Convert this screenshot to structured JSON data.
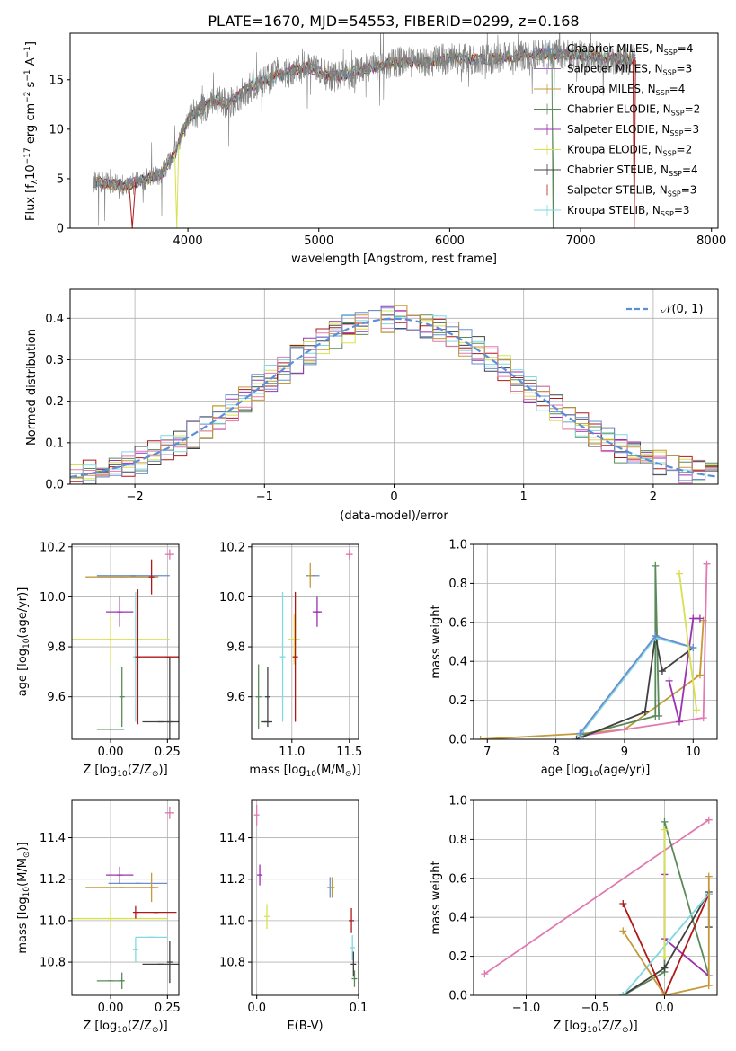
{
  "title": "PLATE=1670, MJD=54553, FIBERID=0299, z=0.168",
  "colors": {
    "spectrum": "#808080",
    "normal": "#5b8fd9",
    "grid": "#b0b0b0",
    "models": [
      "#6a8ed0",
      "#9a6bb8",
      "#c49a3a",
      "#5a8a5a",
      "#9b30b0",
      "#d8e050",
      "#404040",
      "#b01818",
      "#80d8e0"
    ]
  },
  "legend": [
    {
      "label": "Chabrier MILES, N",
      "sub": "SSP",
      "tail": "=4",
      "color": "#6a8ed0"
    },
    {
      "label": "Salpeter MILES, N",
      "sub": "SSP",
      "tail": "=3",
      "color": "#9a6bb8"
    },
    {
      "label": "Kroupa MILES, N",
      "sub": "SSP",
      "tail": "=4",
      "color": "#c49a3a"
    },
    {
      "label": "Chabrier ELODIE, N",
      "sub": "SSP",
      "tail": "=2",
      "color": "#5a8a5a"
    },
    {
      "label": "Salpeter ELODIE, N",
      "sub": "SSP",
      "tail": "=3",
      "color": "#9b30b0"
    },
    {
      "label": "Kroupa ELODIE, N",
      "sub": "SSP",
      "tail": "=2",
      "color": "#d8e050"
    },
    {
      "label": "Chabrier STELIB, N",
      "sub": "SSP",
      "tail": "=4",
      "color": "#404040"
    },
    {
      "label": "Salpeter STELIB, N",
      "sub": "SSP",
      "tail": "=3",
      "color": "#b01818"
    },
    {
      "label": "Kroupa STELIB, N",
      "sub": "SSP",
      "tail": "=3",
      "color": "#80d8e0"
    }
  ],
  "chart_data": [
    {
      "id": "spectrum",
      "type": "line",
      "xlabel": "wavelength [Angstrom, rest frame]",
      "ylabel_parts": [
        "Flux [f",
        "λ",
        "10",
        "−17",
        " erg cm",
        "−2",
        " s",
        "−1",
        " A",
        "−1",
        "]"
      ],
      "xlim": [
        3100,
        8050
      ],
      "ylim": [
        0,
        19.7
      ],
      "xticks": [
        4000,
        5000,
        6000,
        7000,
        8000
      ],
      "yticks": [
        0,
        5,
        10,
        15
      ],
      "x_range": [
        3280,
        7420
      ],
      "continuum": [
        [
          3280,
          4.7
        ],
        [
          3500,
          4.3
        ],
        [
          3650,
          4.8
        ],
        [
          3800,
          5.5
        ],
        [
          3900,
          7.5
        ],
        [
          4000,
          11
        ],
        [
          4100,
          12
        ],
        [
          4200,
          13
        ],
        [
          4300,
          12.5
        ],
        [
          4500,
          14.5
        ],
        [
          4700,
          15.5
        ],
        [
          4900,
          16.3
        ],
        [
          5100,
          15.3
        ],
        [
          5200,
          15.5
        ],
        [
          5400,
          16.2
        ],
        [
          5600,
          16.8
        ],
        [
          5800,
          16.7
        ],
        [
          6000,
          17.2
        ],
        [
          6200,
          17
        ],
        [
          6400,
          17.2
        ],
        [
          6600,
          17.5
        ],
        [
          6800,
          17.6
        ],
        [
          7000,
          17.5
        ],
        [
          7200,
          17.2
        ],
        [
          7420,
          17
        ]
      ],
      "dips": [
        [
          3550,
          3600,
          0
        ],
        [
          3900,
          3930,
          0
        ],
        [
          6780,
          6800,
          0
        ],
        [
          7400,
          7420,
          0
        ]
      ]
    },
    {
      "id": "residuals",
      "type": "histogram",
      "xlabel": "(data-model)/error",
      "ylabel": "Normed distribution",
      "xlim": [
        -2.5,
        2.5
      ],
      "ylim": [
        0,
        0.47
      ],
      "xticks": [
        -2,
        -1,
        0,
        1,
        2
      ],
      "yticks": [
        0.0,
        0.1,
        0.2,
        0.3,
        0.4
      ],
      "legend": "𝒩(0, 1)",
      "bin_width": 0.1
    },
    {
      "id": "age-vs-Z",
      "type": "scatter",
      "xlabel_parts": [
        "Z [log",
        "10",
        "(Z/Z",
        "⊙",
        ")]"
      ],
      "ylabel_parts": [
        "age  [log",
        "10",
        "(age/yr)]"
      ],
      "xlim": [
        -0.17,
        0.3
      ],
      "ylim": [
        9.43,
        10.21
      ],
      "xticks": [
        0.0,
        0.25
      ],
      "yticks": [
        9.6,
        9.8,
        10.0,
        10.2
      ],
      "points": [
        {
          "x": 0.1,
          "y": 10.085,
          "xerr": 0.16,
          "yerr": 0.0,
          "c": "#6a8ed0"
        },
        {
          "x": 0.05,
          "y": 10.08,
          "xerr": 0.16,
          "yerr": 0.0,
          "c": "#c49a3a"
        },
        {
          "x": 0.18,
          "y": 10.08,
          "xerr": 0.0,
          "yerr": 0.07,
          "c": "#b01818"
        },
        {
          "x": 0.04,
          "y": 9.94,
          "xerr": 0.06,
          "yerr": 0.06,
          "c": "#9b30b0"
        },
        {
          "x": 0.0,
          "y": 9.83,
          "xerr": 0.26,
          "yerr": 0.1,
          "c": "#d8e050"
        },
        {
          "x": 0.26,
          "y": 10.17,
          "xerr": 0.02,
          "yerr": 0.02,
          "c": "#e07ab0"
        },
        {
          "x": 0.11,
          "y": 9.76,
          "xerr": 0.0,
          "yerr": 0.26,
          "c": "#80d8e0"
        },
        {
          "x": 0.25,
          "y": 9.76,
          "xerr": 0.13,
          "yerr": 0.0,
          "c": "#b01818"
        },
        {
          "x": 0.12,
          "y": 9.76,
          "xerr": 0.0,
          "yerr": 0.27,
          "c": "#b01818"
        },
        {
          "x": 0.26,
          "y": 9.5,
          "xerr": 0.0,
          "yerr": 0.26,
          "c": "#404040"
        },
        {
          "x": 0.22,
          "y": 9.5,
          "xerr": 0.08,
          "yerr": 0.0,
          "c": "#404040"
        },
        {
          "x": 0.0,
          "y": 9.47,
          "xerr": 0.06,
          "yerr": 0.0,
          "c": "#5a8a5a"
        },
        {
          "x": 0.05,
          "y": 9.6,
          "xerr": 0.0,
          "yerr": 0.12,
          "c": "#5a8a5a"
        }
      ]
    },
    {
      "id": "age-vs-mass",
      "type": "scatter",
      "xlabel_parts": [
        "mass [log",
        "10",
        "(M/M",
        "⊙",
        ")]"
      ],
      "xlim": [
        10.65,
        11.58
      ],
      "ylim": [
        9.43,
        10.21
      ],
      "xticks": [
        11.0,
        11.5
      ],
      "yticks": [
        9.6,
        9.8,
        10.0,
        10.2
      ],
      "points": [
        {
          "x": 11.18,
          "y": 10.085,
          "xerr": 0.06,
          "yerr": 0.0,
          "c": "#6a8ed0"
        },
        {
          "x": 11.16,
          "y": 10.085,
          "xerr": 0.0,
          "yerr": 0.05,
          "c": "#c49a3a"
        },
        {
          "x": 11.22,
          "y": 9.94,
          "xerr": 0.04,
          "yerr": 0.06,
          "c": "#9b30b0"
        },
        {
          "x": 11.02,
          "y": 9.83,
          "xerr": 0.05,
          "yerr": 0.1,
          "c": "#d8e050"
        },
        {
          "x": 11.5,
          "y": 10.17,
          "xerr": 0.03,
          "yerr": 0.02,
          "c": "#e07ab0"
        },
        {
          "x": 10.92,
          "y": 9.76,
          "xerr": 0.0,
          "yerr": 0.26,
          "c": "#80d8e0"
        },
        {
          "x": 11.03,
          "y": 9.76,
          "xerr": 0.0,
          "yerr": 0.26,
          "c": "#b01818"
        },
        {
          "x": 10.78,
          "y": 9.5,
          "xerr": 0.05,
          "yerr": 0.0,
          "c": "#404040"
        },
        {
          "x": 10.79,
          "y": 9.6,
          "xerr": 0.0,
          "yerr": 0.12,
          "c": "#404040"
        },
        {
          "x": 10.71,
          "y": 9.6,
          "xerr": 0.0,
          "yerr": 0.13,
          "c": "#5a8a5a"
        }
      ]
    },
    {
      "id": "weight-vs-age",
      "type": "line",
      "xlabel_parts": [
        "age  [log",
        "10",
        "(age/yr)]"
      ],
      "ylabel": "mass weight",
      "xlim": [
        6.8,
        10.35
      ],
      "ylim": [
        0,
        1.0
      ],
      "xticks": [
        7,
        8,
        9,
        10
      ],
      "yticks": [
        0.0,
        0.2,
        0.4,
        0.6,
        0.8,
        1.0
      ],
      "series": [
        {
          "c": "#c49a3a",
          "pts": [
            [
              6.9,
              0.0
            ],
            [
              8.4,
              0.03
            ],
            [
              9.0,
              0.05
            ],
            [
              10.1,
              0.33
            ],
            [
              10.15,
              0.61
            ]
          ]
        },
        {
          "c": "#e07ab0",
          "pts": [
            [
              8.4,
              0.02
            ],
            [
              9.0,
              0.05
            ],
            [
              10.15,
              0.11
            ],
            [
              10.2,
              0.9
            ]
          ]
        },
        {
          "c": "#9b30b0",
          "pts": [
            [
              9.65,
              0.3
            ],
            [
              9.8,
              0.09
            ],
            [
              10.0,
              0.62
            ],
            [
              10.1,
              0.62
            ]
          ]
        },
        {
          "c": "#5a8a5a",
          "pts": [
            [
              8.35,
              0.02
            ],
            [
              9.45,
              0.12
            ],
            [
              9.45,
              0.89
            ],
            [
              9.5,
              0.12
            ]
          ]
        },
        {
          "c": "#404040",
          "pts": [
            [
              8.3,
              0.0
            ],
            [
              9.3,
              0.14
            ],
            [
              9.45,
              0.53
            ],
            [
              9.55,
              0.35
            ],
            [
              10.0,
              0.47
            ]
          ]
        },
        {
          "c": "#80d8e0",
          "pts": [
            [
              8.35,
              0.02
            ],
            [
              9.45,
              0.52
            ],
            [
              10.0,
              0.47
            ]
          ]
        },
        {
          "c": "#6a8ed0",
          "pts": [
            [
              8.35,
              0.03
            ],
            [
              9.45,
              0.53
            ],
            [
              10.0,
              0.47
            ]
          ]
        },
        {
          "c": "#d8e050",
          "pts": [
            [
              9.8,
              0.85
            ],
            [
              10.05,
              0.15
            ]
          ]
        }
      ]
    },
    {
      "id": "mass-vs-Z",
      "type": "scatter",
      "xlabel_parts": [
        "Z [log",
        "10",
        "(Z/Z",
        "⊙",
        ")]"
      ],
      "ylabel_parts": [
        "mass [log",
        "10",
        "(M/M",
        "⊙",
        ")]"
      ],
      "xlim": [
        -0.17,
        0.3
      ],
      "ylim": [
        10.64,
        11.58
      ],
      "xticks": [
        0.0,
        0.25
      ],
      "yticks": [
        10.8,
        11.0,
        11.2,
        11.4
      ],
      "points": [
        {
          "x": 0.12,
          "y": 11.18,
          "xerr": 0.13,
          "yerr": 0.0,
          "c": "#6a8ed0"
        },
        {
          "x": 0.05,
          "y": 11.16,
          "xerr": 0.16,
          "yerr": 0.0,
          "c": "#c49a3a"
        },
        {
          "x": 0.18,
          "y": 11.16,
          "xerr": 0.0,
          "yerr": 0.07,
          "c": "#c49a3a"
        },
        {
          "x": 0.04,
          "y": 11.22,
          "xerr": 0.06,
          "yerr": 0.04,
          "c": "#9b30b0"
        },
        {
          "x": 0.0,
          "y": 11.01,
          "xerr": 0.25,
          "yerr": 0.05,
          "c": "#d8e050"
        },
        {
          "x": 0.26,
          "y": 11.52,
          "xerr": 0.02,
          "yerr": 0.03,
          "c": "#e07ab0"
        },
        {
          "x": 0.2,
          "y": 11.04,
          "xerr": 0.09,
          "yerr": 0.0,
          "c": "#b01818"
        },
        {
          "x": 0.11,
          "y": 11.04,
          "xerr": 0.0,
          "yerr": 0.03,
          "c": "#b01818"
        },
        {
          "x": 0.18,
          "y": 10.92,
          "xerr": 0.07,
          "yerr": 0.0,
          "c": "#80d8e0"
        },
        {
          "x": 0.11,
          "y": 10.86,
          "xerr": 0.0,
          "yerr": 0.06,
          "c": "#80d8e0"
        },
        {
          "x": 0.22,
          "y": 10.79,
          "xerr": 0.08,
          "yerr": 0.0,
          "c": "#404040"
        },
        {
          "x": 0.26,
          "y": 10.8,
          "xerr": 0.0,
          "yerr": 0.1,
          "c": "#404040"
        },
        {
          "x": 0.0,
          "y": 10.71,
          "xerr": 0.06,
          "yerr": 0.0,
          "c": "#5a8a5a"
        },
        {
          "x": 0.05,
          "y": 10.71,
          "xerr": 0.0,
          "yerr": 0.04,
          "c": "#5a8a5a"
        }
      ]
    },
    {
      "id": "mass-vs-EBV",
      "type": "scatter",
      "xlabel": "E(B-V)",
      "xlim": [
        -0.005,
        0.1
      ],
      "ylim": [
        10.64,
        11.58
      ],
      "xticks": [
        0.0,
        0.1
      ],
      "yticks": [
        10.8,
        11.0,
        11.2,
        11.4
      ],
      "points": [
        {
          "x": 0.0,
          "y": 11.51,
          "xerr": 0.0,
          "yerr": 0.05,
          "c": "#e07ab0"
        },
        {
          "x": 0.003,
          "y": 11.22,
          "xerr": 0.0,
          "yerr": 0.05,
          "c": "#9b30b0"
        },
        {
          "x": 0.01,
          "y": 11.02,
          "xerr": 0.0,
          "yerr": 0.06,
          "c": "#d8e050"
        },
        {
          "x": 0.072,
          "y": 11.16,
          "xerr": 0.0,
          "yerr": 0.05,
          "c": "#6a8ed0"
        },
        {
          "x": 0.074,
          "y": 11.16,
          "xerr": 0.0,
          "yerr": 0.05,
          "c": "#c49a3a"
        },
        {
          "x": 0.093,
          "y": 11.0,
          "xerr": 0.0,
          "yerr": 0.06,
          "c": "#b01818"
        },
        {
          "x": 0.094,
          "y": 10.87,
          "xerr": 0.0,
          "yerr": 0.06,
          "c": "#80d8e0"
        },
        {
          "x": 0.095,
          "y": 10.79,
          "xerr": 0.0,
          "yerr": 0.06,
          "c": "#404040"
        },
        {
          "x": 0.096,
          "y": 10.72,
          "xerr": 0.0,
          "yerr": 0.04,
          "c": "#5a8a5a"
        }
      ]
    },
    {
      "id": "weight-vs-Z",
      "type": "line",
      "xlabel_parts": [
        "Z [log",
        "10",
        "(Z/Z",
        "⊙",
        ")]"
      ],
      "ylabel": "mass weight",
      "xlim": [
        -1.38,
        0.38
      ],
      "ylim": [
        0,
        1.0
      ],
      "xticks": [
        -1.0,
        -0.5,
        0.0
      ],
      "yticks": [
        0.0,
        0.2,
        0.4,
        0.6,
        0.8,
        1.0
      ],
      "series": [
        {
          "c": "#e07ab0",
          "pts": [
            [
              -1.3,
              0.11
            ],
            [
              0.32,
              0.9
            ]
          ]
        },
        {
          "c": "#5a8a5a",
          "pts": [
            [
              -0.3,
              0.0
            ],
            [
              0.0,
              0.12
            ],
            [
              0.0,
              0.89
            ],
            [
              0.32,
              0.1
            ]
          ]
        },
        {
          "c": "#9b30b0",
          "pts": [
            [
              0.0,
              0.62
            ],
            [
              0.0,
              0.29
            ],
            [
              0.32,
              0.1
            ]
          ]
        },
        {
          "c": "#404040",
          "pts": [
            [
              -0.3,
              0.0
            ],
            [
              0.0,
              0.14
            ],
            [
              0.32,
              0.53
            ],
            [
              0.32,
              0.35
            ]
          ]
        },
        {
          "c": "#b01818",
          "pts": [
            [
              -0.3,
              0.47
            ],
            [
              0.0,
              0.0
            ],
            [
              0.32,
              0.52
            ]
          ]
        },
        {
          "c": "#80d8e0",
          "pts": [
            [
              -0.3,
              0.0
            ],
            [
              0.32,
              0.52
            ]
          ]
        },
        {
          "c": "#c49a3a",
          "pts": [
            [
              -0.3,
              0.33
            ],
            [
              0.0,
              0.0
            ],
            [
              0.32,
              0.05
            ],
            [
              0.32,
              0.61
            ]
          ]
        },
        {
          "c": "#d8e050",
          "pts": [
            [
              0.0,
              0.85
            ],
            [
              0.0,
              0.2
            ]
          ]
        }
      ]
    }
  ]
}
